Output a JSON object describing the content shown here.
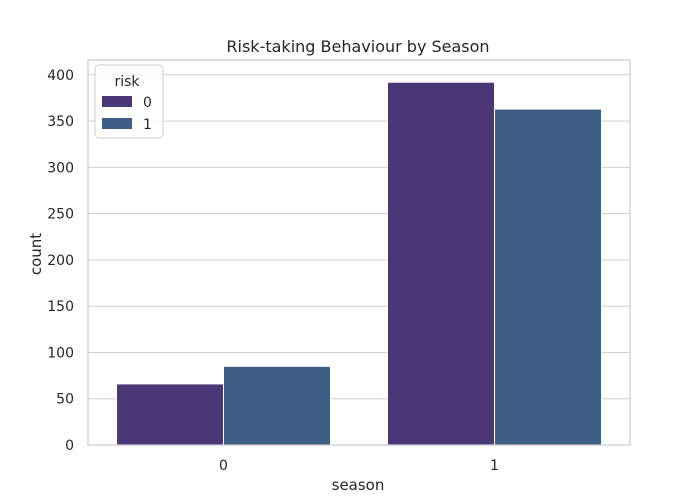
{
  "chart_data": {
    "type": "bar",
    "title": "Risk-taking Behaviour by Season",
    "xlabel": "season",
    "ylabel": "count",
    "categories": [
      "0",
      "1"
    ],
    "series": [
      {
        "name": "0",
        "values": [
          66,
          392
        ],
        "color": "#4a3778"
      },
      {
        "name": "1",
        "values": [
          85,
          363
        ],
        "color": "#3f5e86"
      }
    ],
    "ylim": [
      0,
      416
    ],
    "yticks": [
      0,
      50,
      100,
      150,
      200,
      250,
      300,
      350,
      400
    ],
    "grid": true,
    "legend": {
      "title": "risk",
      "placement": "top-left"
    }
  }
}
